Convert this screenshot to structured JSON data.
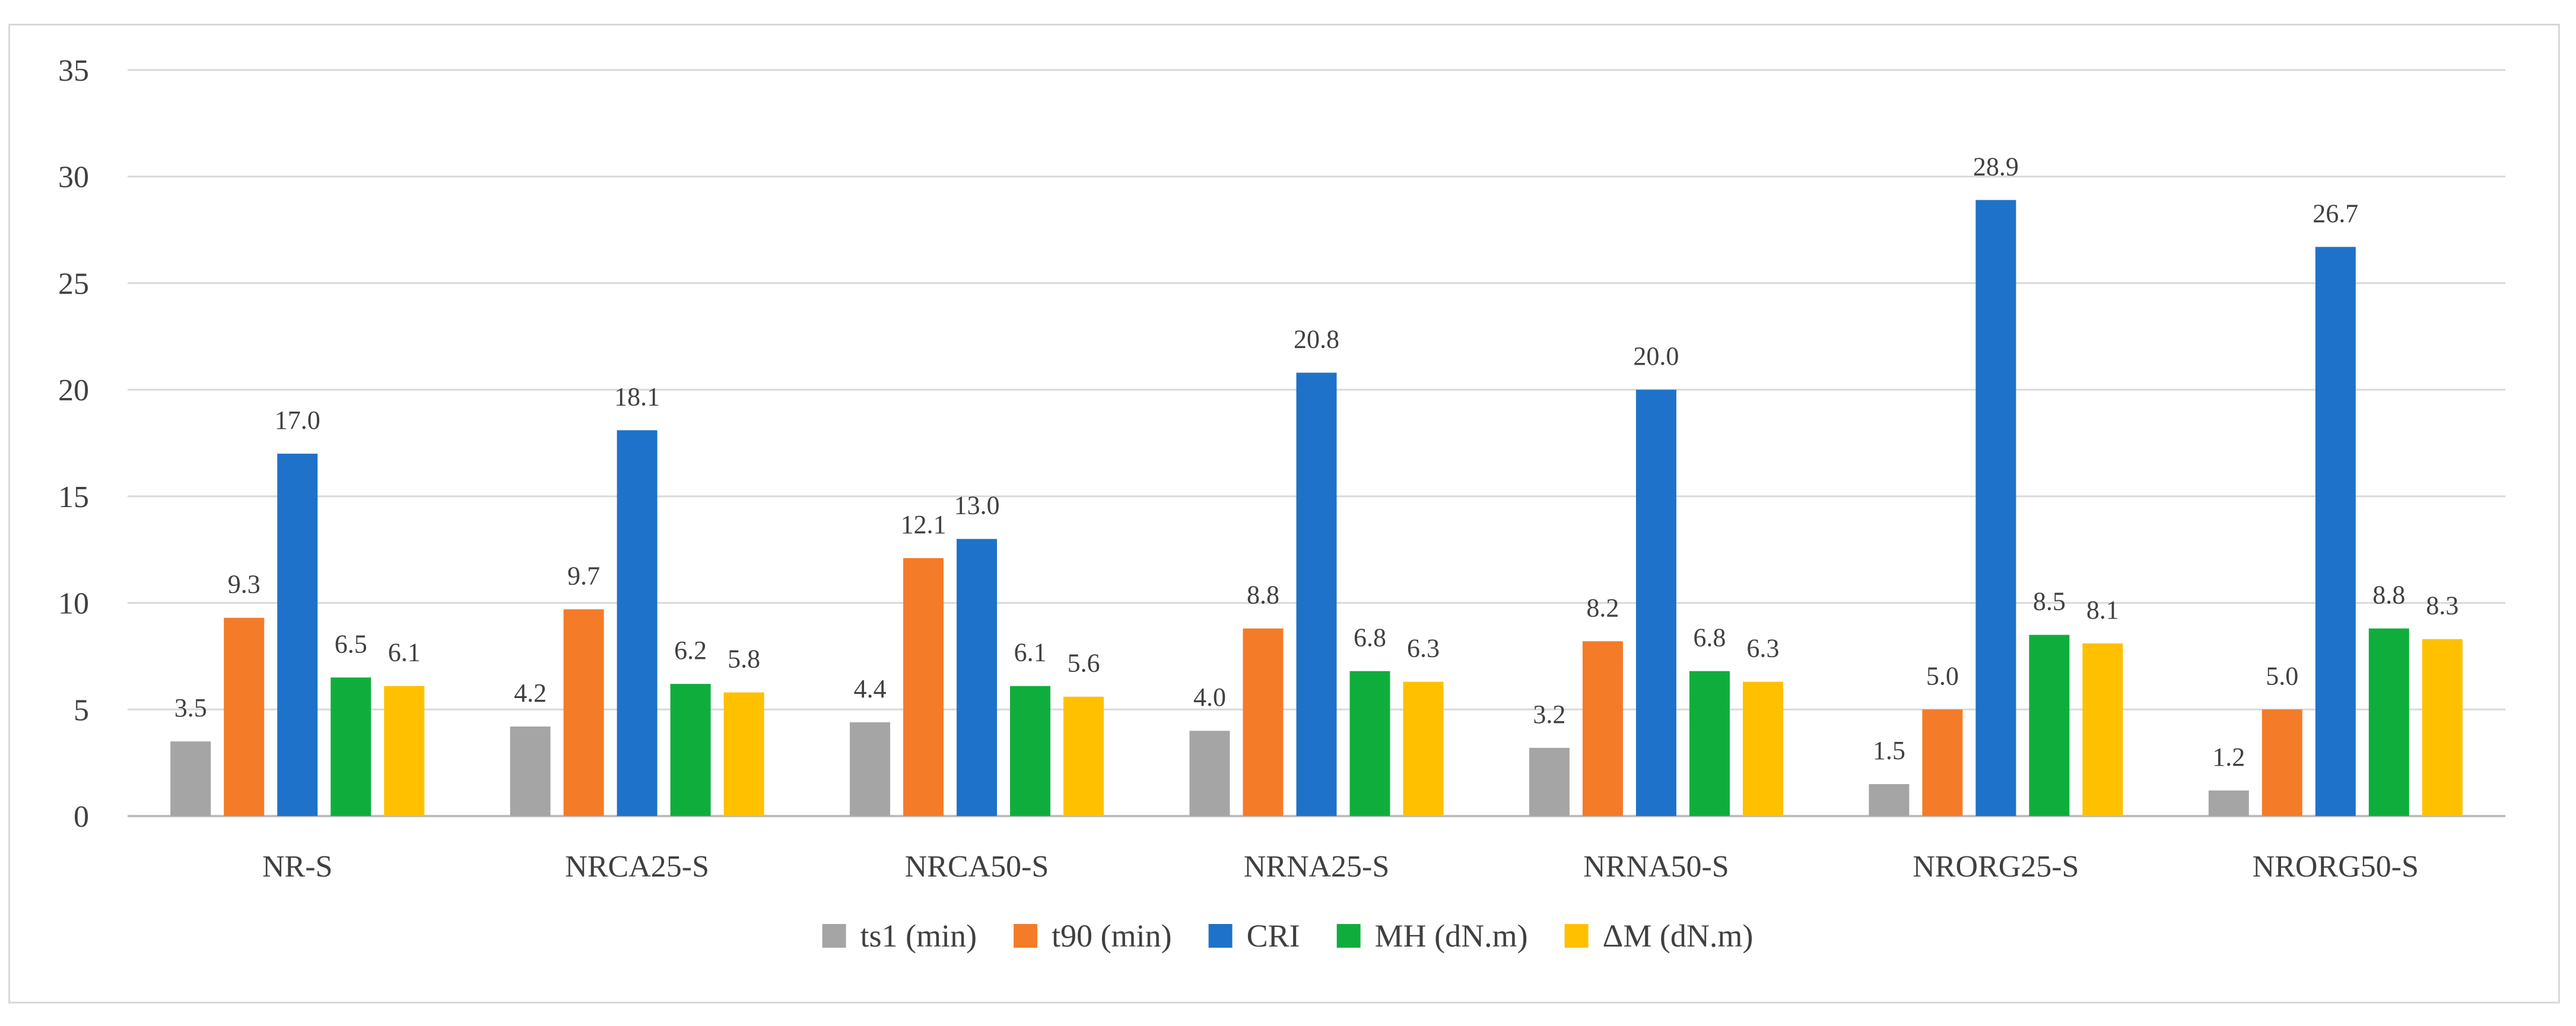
{
  "chart_data": {
    "type": "bar",
    "title": "",
    "xlabel": "",
    "ylabel": "",
    "ylim": [
      0,
      35
    ],
    "yticks": [
      0,
      5,
      10,
      15,
      20,
      25,
      30,
      35
    ],
    "grid": true,
    "legend_position": "bottom",
    "categories": [
      "NR-S",
      "NRCA25-S",
      "NRCA50-S",
      "NRNA25-S",
      "NRNA50-S",
      "NRORG25-S",
      "NRORG50-S"
    ],
    "series": [
      {
        "name": "ts1 (min)",
        "color": "#a5a5a5",
        "values": [
          3.5,
          4.2,
          4.4,
          4.0,
          3.2,
          1.5,
          1.2
        ],
        "labels": [
          "3.5",
          "4.2",
          "4.4",
          "4.0",
          "3.2",
          "1.5",
          "1.2"
        ]
      },
      {
        "name": "t90 (min)",
        "color": "#f47b28",
        "values": [
          9.3,
          9.7,
          12.1,
          8.8,
          8.2,
          5.0,
          5.0
        ],
        "labels": [
          "9.3",
          "9.7",
          "12.1",
          "8.8",
          "8.2",
          "5.0",
          "5.0"
        ]
      },
      {
        "name": "CRI",
        "color": "#1f72c9",
        "values": [
          17.0,
          18.1,
          13.0,
          20.8,
          20.0,
          28.9,
          26.7
        ],
        "labels": [
          "17.0",
          "18.1",
          "13.0",
          "20.8",
          "20.0",
          "28.9",
          "26.7"
        ]
      },
      {
        "name": "MH (dN.m)",
        "color": "#0fae3c",
        "values": [
          6.5,
          6.2,
          6.1,
          6.8,
          6.8,
          8.5,
          8.8
        ],
        "labels": [
          "6.5",
          "6.2",
          "6.1",
          "6.8",
          "6.8",
          "8.5",
          "8.8"
        ]
      },
      {
        "name": "ΔM (dN.m)",
        "color": "#ffc000",
        "values": [
          6.1,
          5.8,
          5.6,
          6.3,
          6.3,
          8.1,
          8.3
        ],
        "labels": [
          "6.1",
          "5.8",
          "5.6",
          "6.3",
          "6.3",
          "8.1",
          "8.3"
        ]
      }
    ]
  }
}
